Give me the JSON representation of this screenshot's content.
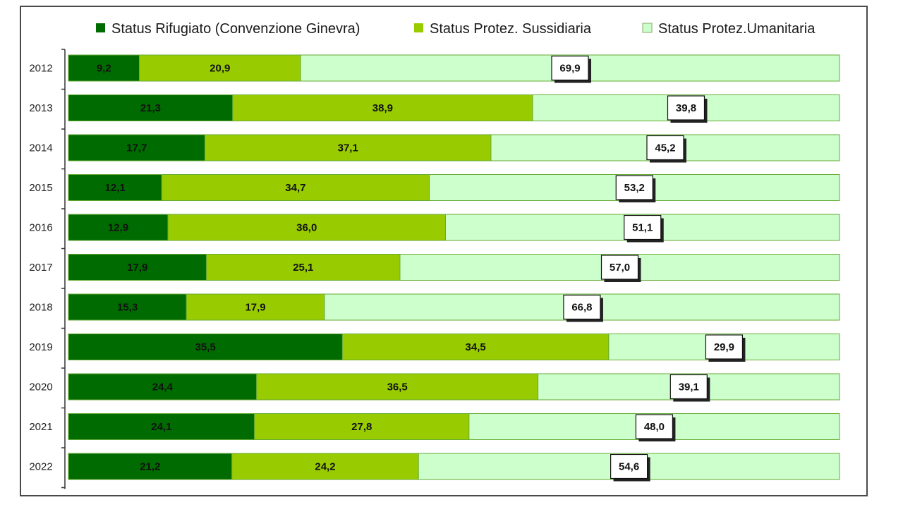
{
  "chart_data": {
    "type": "bar",
    "orientation": "horizontal",
    "stacked": "percent",
    "categories": [
      "2012",
      "2013",
      "2014",
      "2015",
      "2016",
      "2017",
      "2018",
      "2019",
      "2020",
      "2021",
      "2022"
    ],
    "series": [
      {
        "name": "Status Rifugiato (Convenzione Ginevra)",
        "color": "#006b00",
        "values": [
          "9,2",
          "21,3",
          "17,7",
          "12,1",
          "12,9",
          "17,9",
          "15,3",
          "35,5",
          "24,4",
          "24,1",
          "21,2"
        ]
      },
      {
        "name": "Status Protez. Sussidiaria",
        "color": "#99cc00",
        "values": [
          "20,9",
          "38,9",
          "37,1",
          "34,7",
          "36,0",
          "25,1",
          "17,9",
          "34,5",
          "36,5",
          "27,8",
          "24,2"
        ]
      },
      {
        "name": "Status Protez.Umanitaria",
        "color": "#ccffcc",
        "values": [
          "69,9",
          "39,8",
          "45,2",
          "53,2",
          "51,1",
          "57,0",
          "66,8",
          "29,9",
          "39,1",
          "48,0",
          "54,6"
        ]
      }
    ],
    "legend_position": "top",
    "grid": false
  }
}
